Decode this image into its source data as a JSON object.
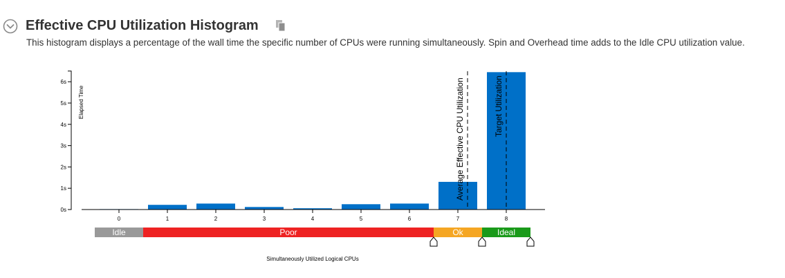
{
  "section": {
    "title": "Effective CPU Utilization Histogram",
    "description": "This histogram displays a percentage of the wall time the specific number of CPUs were running simultaneously. Spin and Overhead time adds to the Idle CPU utilization value.",
    "collapse_icon": "chevron-down-circle-icon",
    "copy_icon": "copy-icon"
  },
  "chart_data": {
    "type": "bar",
    "categories": [
      "0",
      "1",
      "2",
      "3",
      "4",
      "5",
      "6",
      "7",
      "8"
    ],
    "values": [
      0.02,
      0.22,
      0.28,
      0.12,
      0.06,
      0.25,
      0.28,
      1.3,
      6.45
    ],
    "bar_color": "#0070C8",
    "ylabel": "Elapsed Time",
    "xlabel": "Simultaneously Utilized Logical CPUs",
    "ylim": [
      0,
      6.5
    ],
    "yticks": [
      {
        "value": 0,
        "label": "0s"
      },
      {
        "value": 1,
        "label": "1s"
      },
      {
        "value": 2,
        "label": "2s"
      },
      {
        "value": 3,
        "label": "3s"
      },
      {
        "value": 4,
        "label": "4s"
      },
      {
        "value": 5,
        "label": "5s"
      },
      {
        "value": 6,
        "label": "6s"
      }
    ],
    "markers": [
      {
        "x": 7.2,
        "label": "Average Effective CPU Utilization"
      },
      {
        "x": 8.0,
        "label": "Target Utilization"
      }
    ],
    "bands": [
      {
        "label": "Idle",
        "start": -0.5,
        "end": 0.5,
        "color": "#999999"
      },
      {
        "label": "Poor",
        "start": 0.5,
        "end": 6.5,
        "color": "#EE2222"
      },
      {
        "label": "Ok",
        "start": 6.5,
        "end": 7.5,
        "color": "#F5A623"
      },
      {
        "label": "Ideal",
        "start": 7.5,
        "end": 8.5,
        "color": "#1A9A1A"
      }
    ],
    "band_handles": [
      6.5,
      7.5,
      8.5
    ],
    "grid": false,
    "legend": "none"
  }
}
